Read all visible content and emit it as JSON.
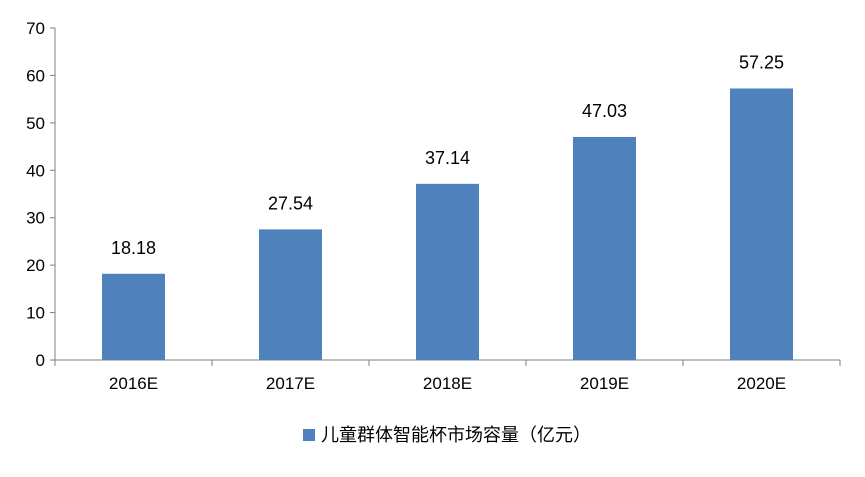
{
  "chart_data": {
    "type": "bar",
    "title": "",
    "xlabel": "",
    "ylabel": "",
    "categories": [
      "2016E",
      "2017E",
      "2018E",
      "2019E",
      "2020E"
    ],
    "series": [
      {
        "name": "儿童群体智能杯市场容量（亿元）",
        "values": [
          18.18,
          27.54,
          37.14,
          47.03,
          57.25
        ],
        "color": "#4f81bd"
      }
    ],
    "ylim": [
      0,
      70
    ],
    "yticks": [
      0,
      10,
      20,
      30,
      40,
      50,
      60,
      70
    ],
    "grid": false,
    "legend_position": "bottom",
    "data_labels": [
      "18.18",
      "27.54",
      "37.14",
      "47.03",
      "57.25"
    ]
  }
}
